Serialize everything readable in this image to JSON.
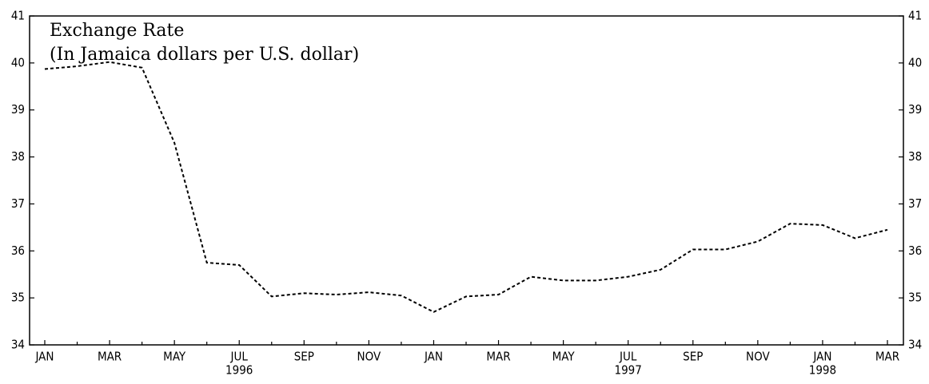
{
  "chart_data": {
    "type": "line",
    "title": "Exchange Rate",
    "subtitle": "(In Jamaica dollars per U.S. dollar)",
    "categories": [
      "JAN",
      null,
      "MAR",
      null,
      "MAY",
      null,
      "JUL",
      null,
      "SEP",
      null,
      "NOV",
      null,
      "JAN",
      null,
      "MAR",
      null,
      "MAY",
      null,
      "JUL",
      null,
      "SEP",
      null,
      "NOV",
      null,
      "JAN",
      null,
      "MAR"
    ],
    "category_years": [
      null,
      null,
      null,
      null,
      null,
      null,
      "1996",
      null,
      null,
      null,
      null,
      null,
      null,
      null,
      null,
      null,
      null,
      null,
      "1997",
      null,
      null,
      null,
      null,
      null,
      "1998",
      null,
      null
    ],
    "series": [
      {
        "name": "Exchange Rate",
        "color": "#000000",
        "values": [
          39.87,
          39.93,
          40.02,
          39.9,
          38.3,
          35.75,
          35.7,
          35.03,
          35.1,
          35.07,
          35.12,
          35.05,
          34.7,
          35.03,
          35.07,
          35.45,
          35.37,
          35.37,
          35.45,
          35.6,
          36.03,
          36.03,
          36.2,
          36.58,
          36.55,
          36.27,
          36.45
        ]
      }
    ],
    "ylim": [
      34,
      41
    ],
    "yticks": [
      34,
      35,
      36,
      37,
      38,
      39,
      40,
      41
    ],
    "y2lim": [
      34,
      41
    ],
    "y2ticks": [
      34,
      35,
      36,
      37,
      38,
      39,
      40,
      41
    ],
    "line_style": "dashed"
  }
}
